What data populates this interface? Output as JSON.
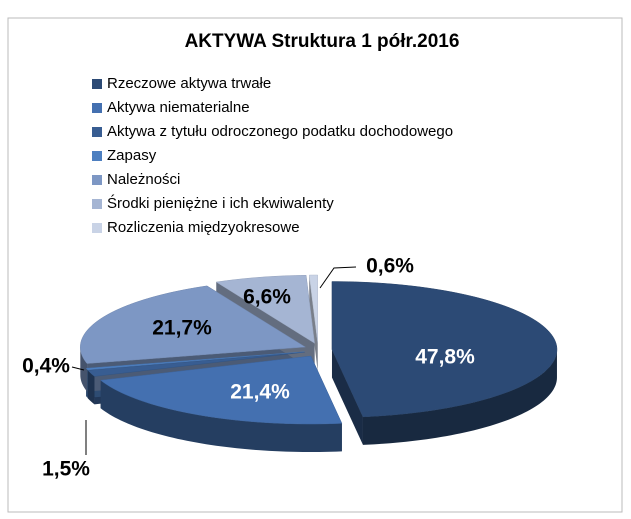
{
  "chart_data": {
    "type": "pie3d",
    "title": "AKTYWA Struktura 1 półr.2016",
    "categories": [
      "Rzeczowe aktywa trwałe",
      "Aktywa niematerialne",
      "Aktywa z tytułu odroczonego podatku dochodowego",
      "Zapasy",
      "Należności",
      "Środki pieniężne i ich ekwiwalenty",
      "Rozliczenia międzyokresowe"
    ],
    "values": [
      47.8,
      21.4,
      1.5,
      0.4,
      21.7,
      6.6,
      0.6
    ],
    "value_labels": [
      "47,8%",
      "21,4%",
      "1,5%",
      "0,4%",
      "21,7%",
      "6,6%",
      "0,6%"
    ],
    "colors": [
      "#2c4a75",
      "#4470b0",
      "#385d92",
      "#4d7fc0",
      "#7d97c4",
      "#a5b5d3",
      "#c9d3e6"
    ],
    "legend": "top-left"
  }
}
